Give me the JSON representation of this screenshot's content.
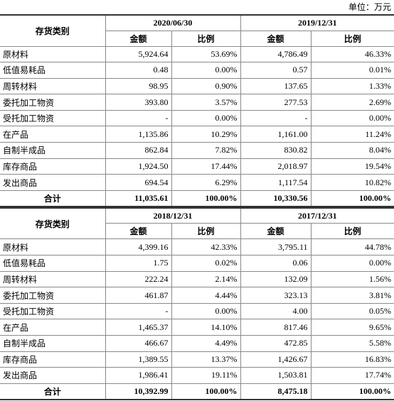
{
  "unit": "单位：万元",
  "tables": [
    {
      "category_header": "存货类别",
      "periods": [
        "2020/06/30",
        "2019/12/31"
      ],
      "subheaders": [
        "金额",
        "比例",
        "金额",
        "比例"
      ],
      "rows": [
        [
          "原材料",
          "5,924.64",
          "53.69%",
          "4,786.49",
          "46.33%"
        ],
        [
          "低值易耗品",
          "0.48",
          "0.00%",
          "0.57",
          "0.01%"
        ],
        [
          "周转材料",
          "98.95",
          "0.90%",
          "137.65",
          "1.33%"
        ],
        [
          "委托加工物资",
          "393.80",
          "3.57%",
          "277.53",
          "2.69%"
        ],
        [
          "受托加工物资",
          "-",
          "0.00%",
          "-",
          "0.00%"
        ],
        [
          "在产品",
          "1,135.86",
          "10.29%",
          "1,161.00",
          "11.24%"
        ],
        [
          "自制半成品",
          "862.84",
          "7.82%",
          "830.82",
          "8.04%"
        ],
        [
          "库存商品",
          "1,924.50",
          "17.44%",
          "2,018.97",
          "19.54%"
        ],
        [
          "发出商品",
          "694.54",
          "6.29%",
          "1,117.54",
          "10.82%"
        ]
      ],
      "total": [
        "合计",
        "11,035.61",
        "100.00%",
        "10,330.56",
        "100.00%"
      ]
    },
    {
      "category_header": "存货类别",
      "periods": [
        "2018/12/31",
        "2017/12/31"
      ],
      "subheaders": [
        "金额",
        "比例",
        "金额",
        "比例"
      ],
      "rows": [
        [
          "原材料",
          "4,399.16",
          "42.33%",
          "3,795.11",
          "44.78%"
        ],
        [
          "低值易耗品",
          "1.75",
          "0.02%",
          "0.06",
          "0.00%"
        ],
        [
          "周转材料",
          "222.24",
          "2.14%",
          "132.09",
          "1.56%"
        ],
        [
          "委托加工物资",
          "461.87",
          "4.44%",
          "323.13",
          "3.81%"
        ],
        [
          "受托加工物资",
          "-",
          "0.00%",
          "4.00",
          "0.05%"
        ],
        [
          "在产品",
          "1,465.37",
          "14.10%",
          "817.46",
          "9.65%"
        ],
        [
          "自制半成品",
          "466.67",
          "4.49%",
          "472.85",
          "5.58%"
        ],
        [
          "库存商品",
          "1,389.55",
          "13.37%",
          "1,426.67",
          "16.83%"
        ],
        [
          "发出商品",
          "1,986.41",
          "19.11%",
          "1,503.81",
          "17.74%"
        ]
      ],
      "total": [
        "合计",
        "10,392.99",
        "100.00%",
        "8,475.18",
        "100.00%"
      ]
    }
  ]
}
